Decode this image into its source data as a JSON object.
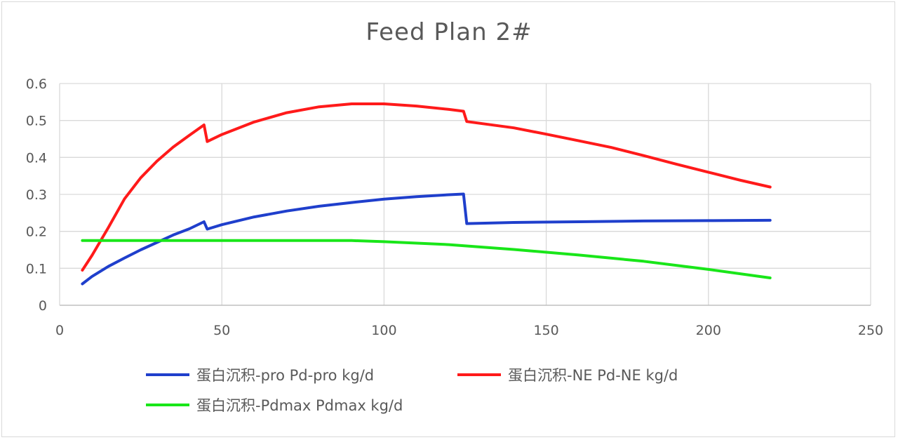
{
  "chart_data": {
    "type": "line",
    "title": "Feed Plan 2#",
    "xlabel": "",
    "ylabel": "",
    "xlim": [
      0,
      250
    ],
    "ylim": [
      0,
      0.6
    ],
    "x_ticks": [
      0,
      50,
      100,
      150,
      200,
      250
    ],
    "y_ticks": [
      0,
      0.1,
      0.2,
      0.3,
      0.4,
      0.5,
      0.6
    ],
    "y_tick_labels": [
      "0",
      "0.1",
      "0.2",
      "0.3",
      "0.4",
      "0.5",
      "0.6"
    ],
    "grid": true,
    "legend_position": "bottom",
    "series": [
      {
        "name": "蛋白沉积-pro Pd-pro kg/d",
        "color": "#1f3fcc",
        "points": [
          [
            7,
            0.058
          ],
          [
            10,
            0.078
          ],
          [
            15,
            0.105
          ],
          [
            20,
            0.128
          ],
          [
            25,
            0.15
          ],
          [
            30,
            0.17
          ],
          [
            35,
            0.19
          ],
          [
            40,
            0.207
          ],
          [
            44.5,
            0.226
          ],
          [
            45.5,
            0.206
          ],
          [
            50,
            0.218
          ],
          [
            60,
            0.239
          ],
          [
            70,
            0.255
          ],
          [
            80,
            0.268
          ],
          [
            90,
            0.278
          ],
          [
            100,
            0.287
          ],
          [
            110,
            0.294
          ],
          [
            120,
            0.299
          ],
          [
            124.5,
            0.301
          ],
          [
            125.5,
            0.221
          ],
          [
            140,
            0.224
          ],
          [
            160,
            0.226
          ],
          [
            180,
            0.228
          ],
          [
            200,
            0.229
          ],
          [
            219,
            0.23
          ]
        ]
      },
      {
        "name": "蛋白沉积-NE Pd-NE kg/d",
        "color": "#ff1a1a",
        "points": [
          [
            7,
            0.095
          ],
          [
            10,
            0.135
          ],
          [
            15,
            0.21
          ],
          [
            20,
            0.288
          ],
          [
            25,
            0.345
          ],
          [
            30,
            0.39
          ],
          [
            35,
            0.428
          ],
          [
            40,
            0.46
          ],
          [
            44.5,
            0.488
          ],
          [
            45.5,
            0.443
          ],
          [
            50,
            0.462
          ],
          [
            60,
            0.496
          ],
          [
            70,
            0.521
          ],
          [
            80,
            0.537
          ],
          [
            90,
            0.545
          ],
          [
            100,
            0.545
          ],
          [
            110,
            0.539
          ],
          [
            120,
            0.53
          ],
          [
            124.5,
            0.525
          ],
          [
            125.5,
            0.497
          ],
          [
            140,
            0.48
          ],
          [
            150,
            0.463
          ],
          [
            160,
            0.445
          ],
          [
            170,
            0.427
          ],
          [
            180,
            0.405
          ],
          [
            190,
            0.382
          ],
          [
            200,
            0.36
          ],
          [
            210,
            0.338
          ],
          [
            219,
            0.32
          ]
        ]
      },
      {
        "name": "蛋白沉积-Pdmax Pdmax kg/d",
        "color": "#19e619",
        "points": [
          [
            7,
            0.175
          ],
          [
            50,
            0.175
          ],
          [
            90,
            0.175
          ],
          [
            100,
            0.172
          ],
          [
            120,
            0.164
          ],
          [
            140,
            0.151
          ],
          [
            160,
            0.136
          ],
          [
            180,
            0.119
          ],
          [
            200,
            0.097
          ],
          [
            219,
            0.074
          ]
        ]
      }
    ]
  }
}
